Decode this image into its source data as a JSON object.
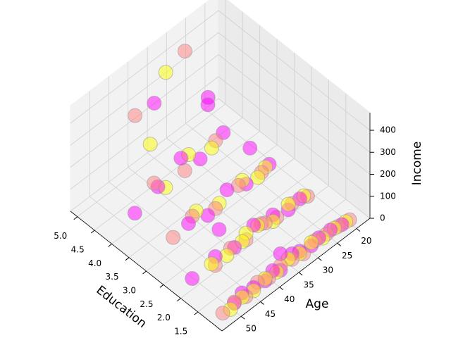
{
  "chart_data": {
    "type": "scatter3d",
    "x_label": "Age",
    "y_label": "Education",
    "z_label": "Income",
    "xlim": [
      16.5,
      55
    ],
    "ylim": [
      0.8,
      5.2
    ],
    "zlim": [
      0,
      480
    ],
    "xticks": [
      20,
      25,
      30,
      35,
      40,
      45,
      50
    ],
    "yticks": [
      1.5,
      {
        "value": 2,
        "label": "2.0"
      },
      2.5,
      {
        "value": 3,
        "label": "3.0"
      },
      3.5,
      {
        "value": 4,
        "label": "4.0"
      },
      4.5,
      {
        "value": 5,
        "label": "5.0"
      }
    ],
    "zticks": [
      0,
      100,
      200,
      300,
      400
    ],
    "grid": true,
    "series": [
      {
        "color": "#ff00ff",
        "x": [
          22,
          25,
          28,
          30,
          33,
          35,
          38,
          40,
          42,
          45,
          48,
          50,
          24,
          27,
          31,
          36,
          41,
          46,
          52,
          23,
          29,
          34,
          39,
          44,
          26,
          32,
          37,
          43,
          49,
          21,
          35,
          28,
          45,
          38,
          30
        ],
        "y": [
          1,
          1,
          1,
          1,
          1,
          1,
          1,
          1,
          1,
          1,
          1,
          1,
          2,
          2,
          2,
          2,
          2,
          2,
          2,
          3,
          3,
          3,
          3,
          3,
          4,
          4,
          4,
          4,
          4,
          5,
          5,
          3,
          2,
          1,
          4
        ],
        "z": [
          20,
          35,
          40,
          30,
          45,
          60,
          25,
          50,
          30,
          40,
          55,
          35,
          40,
          30,
          60,
          80,
          45,
          70,
          50,
          60,
          50,
          90,
          40,
          70,
          120,
          80,
          150,
          100,
          60,
          90,
          250,
          200,
          180,
          100,
          300
        ]
      },
      {
        "color": "#ff8080",
        "x": [
          20,
          23,
          26,
          29,
          32,
          35,
          38,
          41,
          44,
          47,
          50,
          53,
          22,
          26,
          30,
          34,
          38,
          42,
          46,
          25,
          31,
          37,
          43,
          28,
          36,
          44,
          27,
          40,
          33,
          48
        ],
        "y": [
          1,
          1,
          1,
          1,
          1,
          1,
          1,
          1,
          1,
          1,
          1,
          1,
          2,
          2,
          2,
          2,
          2,
          2,
          2,
          3,
          3,
          3,
          3,
          4,
          4,
          4,
          5,
          5,
          2,
          3
        ],
        "z": [
          15,
          25,
          30,
          40,
          20,
          35,
          45,
          30,
          50,
          25,
          40,
          30,
          25,
          45,
          35,
          60,
          40,
          55,
          30,
          50,
          70,
          45,
          90,
          110,
          80,
          130,
          380,
          260,
          50,
          60
        ]
      },
      {
        "color": "#ffff00",
        "x": [
          21,
          24,
          27,
          30,
          33,
          36,
          39,
          42,
          45,
          48,
          51,
          23,
          27,
          31,
          35,
          39,
          43,
          47,
          24,
          30,
          36,
          42,
          29,
          35,
          41,
          32,
          45,
          26,
          38
        ],
        "y": [
          1,
          1,
          1,
          1,
          1,
          1,
          1,
          1,
          1,
          1,
          1,
          2,
          2,
          2,
          2,
          2,
          2,
          2,
          3,
          3,
          3,
          3,
          4,
          4,
          4,
          5,
          4,
          3,
          2
        ],
        "z": [
          20,
          30,
          25,
          45,
          35,
          50,
          30,
          40,
          25,
          35,
          20,
          40,
          55,
          30,
          65,
          45,
          35,
          50,
          60,
          80,
          55,
          100,
          90,
          140,
          70,
          350,
          320,
          40,
          70
        ]
      }
    ]
  }
}
